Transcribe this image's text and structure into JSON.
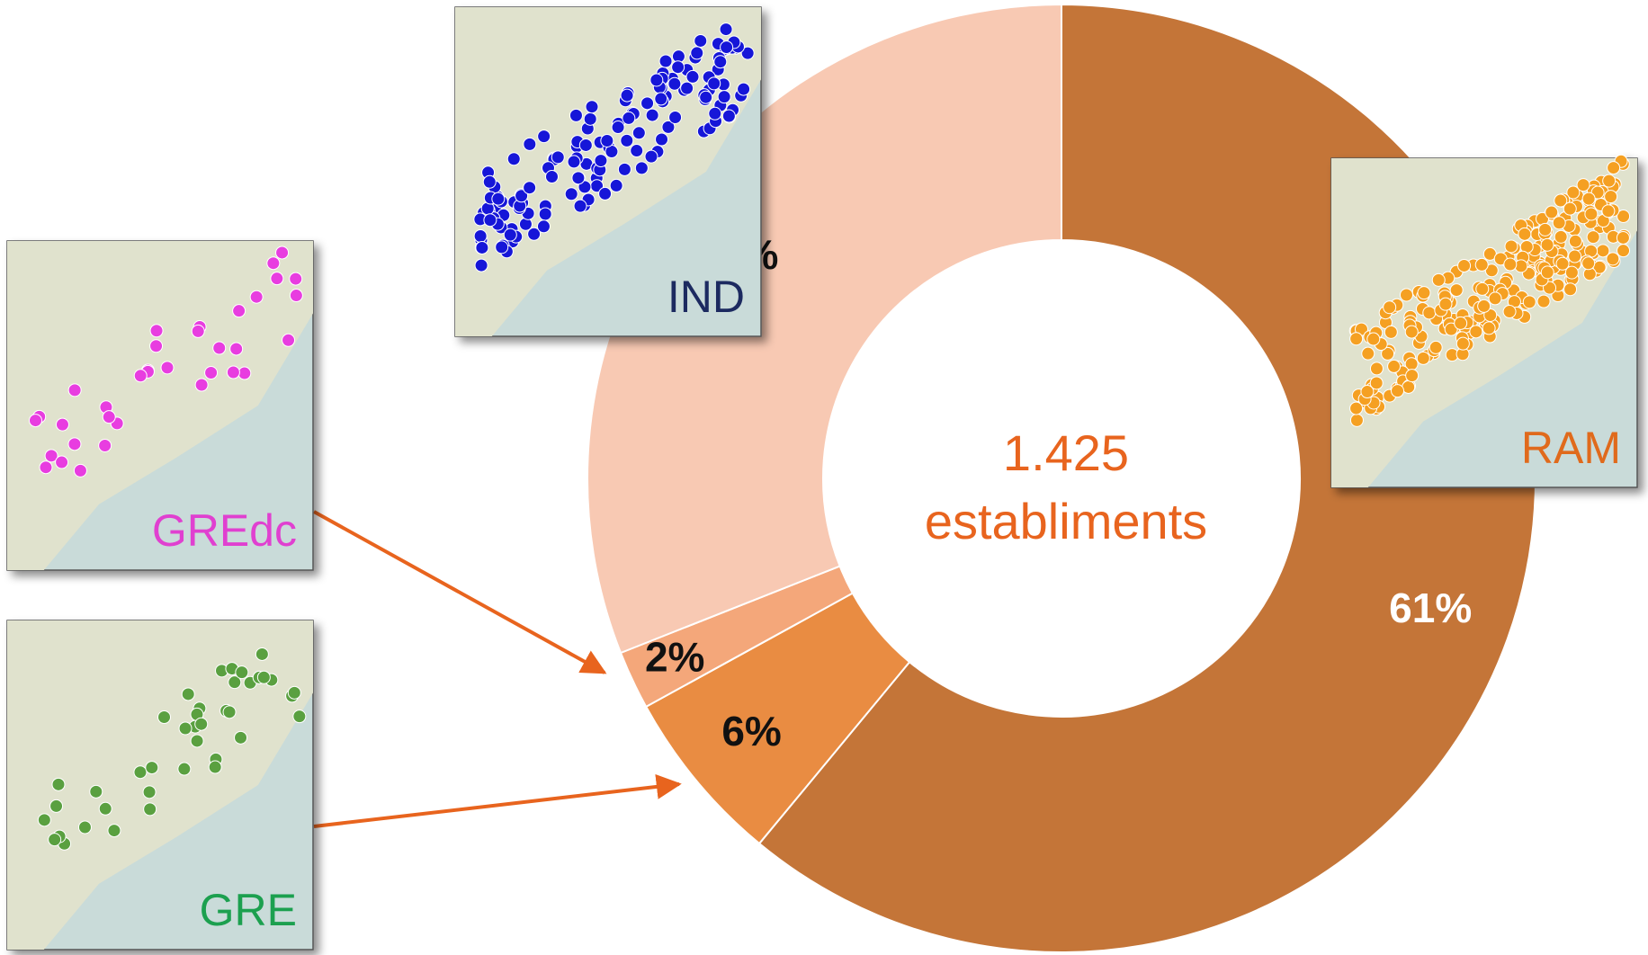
{
  "chart_data": {
    "type": "pie",
    "categories": [
      "RAM",
      "GRE",
      "GREdc",
      "IND"
    ],
    "values": [
      61,
      6,
      2,
      31
    ],
    "value_labels": [
      "61%",
      "6%",
      "2%",
      "31%"
    ],
    "colors": [
      "#c47538",
      "#e98c42",
      "#f4a77a",
      "#f8c9b3"
    ],
    "label_colors": [
      "#ffffff",
      "#111111",
      "#111111",
      "#111111"
    ],
    "map_dot_colors": [
      "#f5a020",
      "#5aa040",
      "#e83ee0",
      "#1515d8"
    ],
    "map_label_colors": [
      "#e06a1a",
      "#1aa050",
      "#e040d0",
      "#1a2a60"
    ],
    "center_text": [
      "1.425",
      "establiments"
    ]
  }
}
